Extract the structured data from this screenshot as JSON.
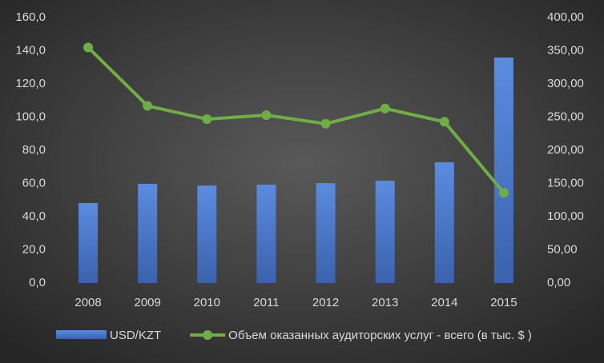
{
  "chart_data": {
    "type": "bar-line",
    "categories": [
      "2008",
      "2009",
      "2010",
      "2011",
      "2012",
      "2013",
      "2014",
      "2015"
    ],
    "series": [
      {
        "name": "USD/KZT",
        "type": "bar",
        "color": "#4472c4",
        "axis": "y",
        "values": [
          48.2,
          59.8,
          58.8,
          59.3,
          60.2,
          61.7,
          72.8,
          135.9
        ]
      },
      {
        "name": "Объем оказанных аудиторских услуг - всего (в тыс. $ )",
        "type": "line",
        "color": "#70ad47",
        "axis": "y2",
        "values": [
          355,
          267,
          247,
          253,
          240,
          263,
          243,
          136
        ]
      }
    ],
    "ylim": [
      0,
      160
    ],
    "yticks": [
      {
        "value": 0,
        "label": "0,0"
      },
      {
        "value": 20,
        "label": "20,0"
      },
      {
        "value": 40,
        "label": "40,0"
      },
      {
        "value": 60,
        "label": "60,0"
      },
      {
        "value": 80,
        "label": "80,0"
      },
      {
        "value": 100,
        "label": "100,0"
      },
      {
        "value": 120,
        "label": "120,0"
      },
      {
        "value": 140,
        "label": "140,0"
      },
      {
        "value": 160,
        "label": "160,0"
      }
    ],
    "y2lim": [
      0,
      400
    ],
    "y2ticks": [
      {
        "value": 0,
        "label": "0,00"
      },
      {
        "value": 50,
        "label": "50,00"
      },
      {
        "value": 100,
        "label": "100,00"
      },
      {
        "value": 150,
        "label": "150,00"
      },
      {
        "value": 200,
        "label": "200,00"
      },
      {
        "value": 250,
        "label": "250,00"
      },
      {
        "value": 300,
        "label": "300,00"
      },
      {
        "value": 350,
        "label": "350,00"
      },
      {
        "value": 400,
        "label": "400,00"
      }
    ],
    "legend": "bottom"
  }
}
